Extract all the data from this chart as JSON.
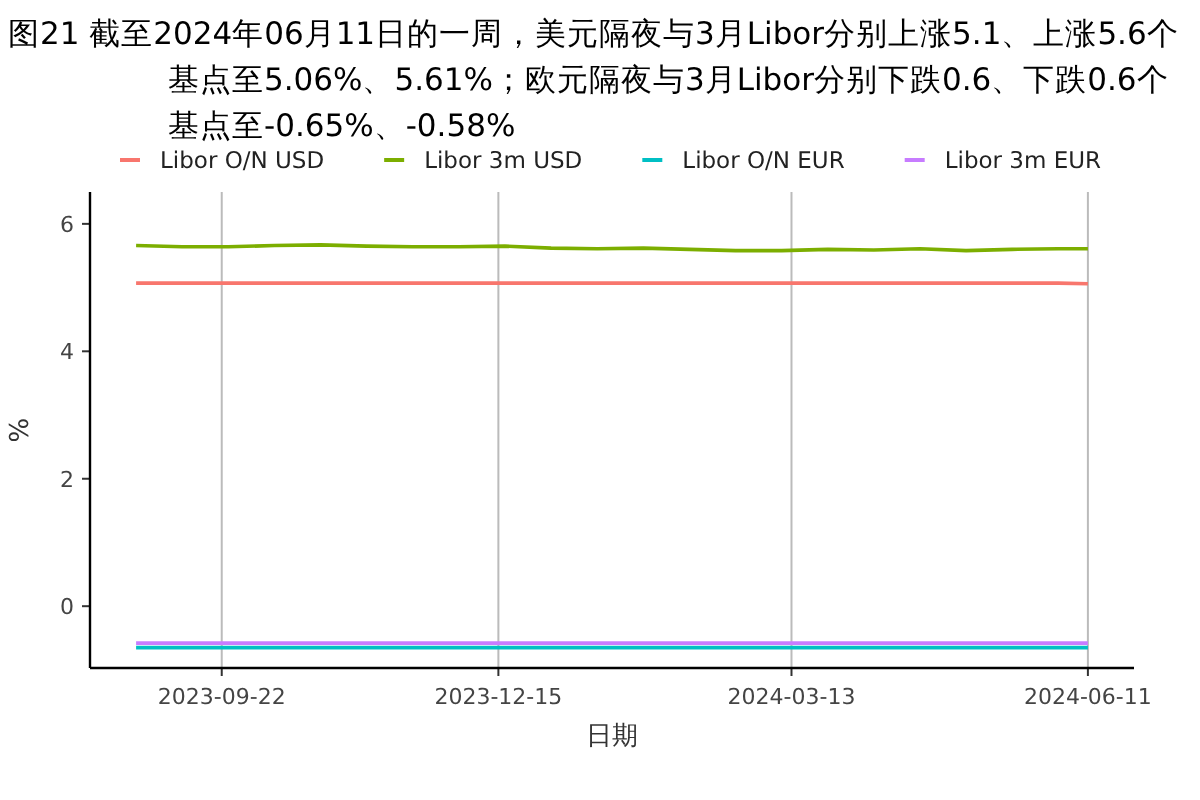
{
  "chart_data": {
    "type": "line",
    "title": "图21  截至2024年06月11日的一周，美元隔夜与3月Libor分别上涨5.1、上涨5.6个基点至5.06%、5.61%；欧元隔夜与3月Libor分别下跌0.6、下跌0.6个基点至-0.65%、-0.58%",
    "xlabel": "日期",
    "ylabel": "%",
    "x": [
      "2023-08-27",
      "2023-09-10",
      "2023-09-24",
      "2023-10-08",
      "2023-10-22",
      "2023-11-05",
      "2023-11-19",
      "2023-12-03",
      "2023-12-17",
      "2023-12-31",
      "2024-01-14",
      "2024-01-28",
      "2024-02-11",
      "2024-02-25",
      "2024-03-10",
      "2024-03-24",
      "2024-04-07",
      "2024-04-21",
      "2024-05-05",
      "2024-05-19",
      "2024-06-02",
      "2024-06-11"
    ],
    "series": [
      {
        "name": "Libor O/N USD",
        "color": "#f8766d",
        "values": [
          5.07,
          5.07,
          5.07,
          5.07,
          5.07,
          5.07,
          5.07,
          5.07,
          5.07,
          5.07,
          5.07,
          5.07,
          5.07,
          5.07,
          5.07,
          5.07,
          5.07,
          5.07,
          5.07,
          5.07,
          5.07,
          5.06
        ]
      },
      {
        "name": "Libor 3m USD",
        "color": "#7cae00",
        "values": [
          5.66,
          5.64,
          5.64,
          5.66,
          5.67,
          5.65,
          5.64,
          5.64,
          5.65,
          5.62,
          5.61,
          5.62,
          5.6,
          5.58,
          5.58,
          5.6,
          5.59,
          5.61,
          5.58,
          5.6,
          5.61,
          5.61
        ]
      },
      {
        "name": "Libor O/N EUR",
        "color": "#00bfc4",
        "values": [
          -0.65,
          -0.65,
          -0.65,
          -0.65,
          -0.65,
          -0.65,
          -0.65,
          -0.65,
          -0.65,
          -0.65,
          -0.65,
          -0.65,
          -0.65,
          -0.65,
          -0.65,
          -0.65,
          -0.65,
          -0.65,
          -0.65,
          -0.65,
          -0.65,
          -0.65
        ]
      },
      {
        "name": "Libor 3m EUR",
        "color": "#c77cff",
        "values": [
          -0.58,
          -0.58,
          -0.58,
          -0.58,
          -0.58,
          -0.58,
          -0.58,
          -0.58,
          -0.58,
          -0.58,
          -0.58,
          -0.58,
          -0.58,
          -0.58,
          -0.58,
          -0.58,
          -0.58,
          -0.58,
          -0.58,
          -0.58,
          -0.58,
          -0.58
        ]
      }
    ],
    "xlim": [
      "2023-08-13",
      "2024-06-25"
    ],
    "ylim": [
      -0.97,
      6.5
    ],
    "xticks": [
      "2023-09-22",
      "2023-12-15",
      "2024-03-13",
      "2024-06-11"
    ],
    "yticks": [
      0,
      2,
      4,
      6
    ],
    "grid": "x",
    "legend": "top"
  }
}
